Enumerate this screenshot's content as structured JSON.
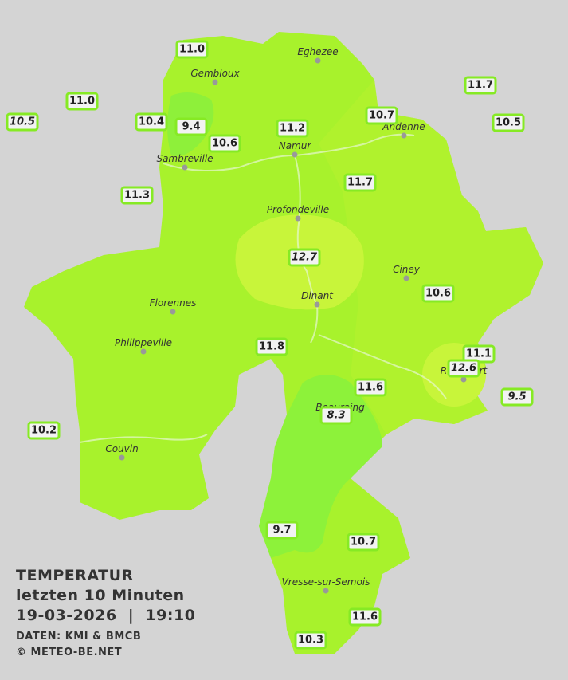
{
  "title": {
    "line1": "TEMPERATUR",
    "line2": "letzten 10 Minuten",
    "line3": "19-03-2026  |  19:10",
    "source": "DATEN: KMI & BMCB",
    "copyright": "© METEO-BE.NET"
  },
  "towns": [
    "Eghezee",
    "Gembloux",
    "Andenne",
    "Namur",
    "Sambreville",
    "Profondeville",
    "Ciney",
    "Dinant",
    "Florennes",
    "Philippeville",
    "Rochefort",
    "Beauraing",
    "Couvin",
    "Vresse-sur-Semois"
  ],
  "stations": [
    {
      "label": "11.0",
      "italic": false
    },
    {
      "label": "11.0",
      "italic": false
    },
    {
      "label": "10.5",
      "italic": true
    },
    {
      "label": "10.4",
      "italic": false
    },
    {
      "label": "9.4",
      "italic": false
    },
    {
      "label": "10.6",
      "italic": false
    },
    {
      "label": "11.2",
      "italic": false
    },
    {
      "label": "10.7",
      "italic": false
    },
    {
      "label": "11.7",
      "italic": false
    },
    {
      "label": "10.5",
      "italic": false
    },
    {
      "label": "11.3",
      "italic": false
    },
    {
      "label": "11.7",
      "italic": false
    },
    {
      "label": "12.7",
      "italic": true
    },
    {
      "label": "10.6",
      "italic": false
    },
    {
      "label": "11.8",
      "italic": false
    },
    {
      "label": "11.1",
      "italic": false
    },
    {
      "label": "12.6",
      "italic": true
    },
    {
      "label": "11.6",
      "italic": false
    },
    {
      "label": "9.5",
      "italic": true
    },
    {
      "label": "8.3",
      "italic": true
    },
    {
      "label": "10.2",
      "italic": false
    },
    {
      "label": "9.7",
      "italic": false
    },
    {
      "label": "10.7",
      "italic": false
    },
    {
      "label": "11.6",
      "italic": false
    },
    {
      "label": "10.3",
      "italic": false
    }
  ]
}
